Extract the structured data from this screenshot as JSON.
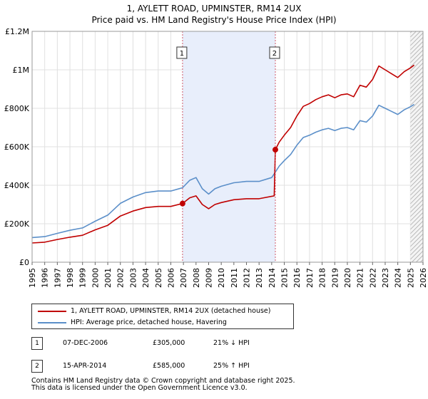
{
  "colors": {
    "property": "#c00000",
    "hpi": "#5b8fc9",
    "shade": "#e8eefb",
    "grid": "#e0e0e0",
    "marker_line": "#d05b6b"
  },
  "chart_data": {
    "type": "line",
    "title": "1, AYLETT ROAD, UPMINSTER, RM14 2UX",
    "subtitle": "Price paid vs. HM Land Registry's House Price Index (HPI)",
    "xlim": [
      1995,
      2026
    ],
    "ylim": [
      0,
      1200000
    ],
    "y_ticks": [
      0,
      200000,
      400000,
      600000,
      800000,
      1000000,
      1200000
    ],
    "y_tick_labels": [
      "£0",
      "£200K",
      "£400K",
      "£600K",
      "£800K",
      "£1M",
      "£1.2M"
    ],
    "x_ticks": [
      "1995",
      "1996",
      "1997",
      "1998",
      "1999",
      "2000",
      "2001",
      "2002",
      "2003",
      "2004",
      "2005",
      "2006",
      "2007",
      "2008",
      "2009",
      "2010",
      "2011",
      "2012",
      "2013",
      "2014",
      "2015",
      "2016",
      "2017",
      "2018",
      "2019",
      "2020",
      "2021",
      "2022",
      "2023",
      "2024",
      "2025",
      "2026"
    ],
    "shaded_period": [
      2006.93,
      2014.29
    ],
    "hatched_from": 2025.0,
    "series": [
      {
        "name": "1, AYLETT ROAD, UPMINSTER, RM14 2UX (detached house)",
        "x": [
          1995.0,
          1996.0,
          1997.0,
          1998.0,
          1999.0,
          2000.0,
          2001.0,
          2002.0,
          2003.0,
          2004.0,
          2005.0,
          2006.0,
          2006.93,
          2007.5,
          2008.0,
          2008.5,
          2009.0,
          2009.5,
          2010.0,
          2011.0,
          2012.0,
          2013.0,
          2014.2,
          2014.29,
          2014.6,
          2015.0,
          2015.5,
          2016.0,
          2016.5,
          2017.0,
          2017.5,
          2018.0,
          2018.5,
          2019.0,
          2019.5,
          2020.0,
          2020.5,
          2021.0,
          2021.5,
          2022.0,
          2022.5,
          2023.0,
          2023.5,
          2024.0,
          2024.5,
          2025.0,
          2025.3
        ],
        "values": [
          100000,
          104000,
          118000,
          130000,
          140000,
          168000,
          192000,
          240000,
          266000,
          284000,
          290000,
          290000,
          305000,
          335000,
          345000,
          300000,
          278000,
          300000,
          310000,
          325000,
          330000,
          330000,
          345000,
          585000,
          625000,
          660000,
          700000,
          760000,
          810000,
          825000,
          845000,
          860000,
          870000,
          855000,
          870000,
          875000,
          860000,
          920000,
          910000,
          950000,
          1020000,
          1000000,
          980000,
          960000,
          990000,
          1010000,
          1025000
        ]
      },
      {
        "name": "HPI: Average price, detached house, Havering",
        "x": [
          1995.0,
          1996.0,
          1997.0,
          1998.0,
          1999.0,
          2000.0,
          2001.0,
          2002.0,
          2003.0,
          2004.0,
          2005.0,
          2006.0,
          2006.93,
          2007.5,
          2008.0,
          2008.5,
          2009.0,
          2009.5,
          2010.0,
          2011.0,
          2012.0,
          2013.0,
          2014.0,
          2014.29,
          2014.6,
          2015.0,
          2015.5,
          2016.0,
          2016.5,
          2017.0,
          2017.5,
          2018.0,
          2018.5,
          2019.0,
          2019.5,
          2020.0,
          2020.5,
          2021.0,
          2021.5,
          2022.0,
          2022.5,
          2023.0,
          2023.5,
          2024.0,
          2024.5,
          2025.0,
          2025.3
        ],
        "values": [
          128000,
          133000,
          150000,
          166000,
          178000,
          213000,
          245000,
          306000,
          339000,
          362000,
          370000,
          370000,
          387000,
          426000,
          440000,
          382000,
          354000,
          382000,
          395000,
          413000,
          420000,
          420000,
          440000,
          468000,
          500000,
          528000,
          560000,
          608000,
          648000,
          660000,
          676000,
          688000,
          696000,
          684000,
          696000,
          700000,
          688000,
          736000,
          728000,
          760000,
          816000,
          800000,
          784000,
          768000,
          792000,
          808000,
          820000
        ]
      }
    ],
    "markers": [
      {
        "label": "1",
        "x": 2006.93,
        "y": 305000
      },
      {
        "label": "2",
        "x": 2014.29,
        "y": 585000
      }
    ]
  },
  "legend": {
    "property_label": "1, AYLETT ROAD, UPMINSTER, RM14 2UX (detached house)",
    "hpi_label": "HPI: Average price, detached house, Havering"
  },
  "transactions": [
    {
      "num": "1",
      "date": "07-DEC-2006",
      "price": "£305,000",
      "hpi": "21% ↓ HPI"
    },
    {
      "num": "2",
      "date": "15-APR-2014",
      "price": "£585,000",
      "hpi": "25% ↑ HPI"
    }
  ],
  "footer": {
    "line1": "Contains HM Land Registry data © Crown copyright and database right 2025.",
    "line2": "This data is licensed under the Open Government Licence v3.0."
  }
}
